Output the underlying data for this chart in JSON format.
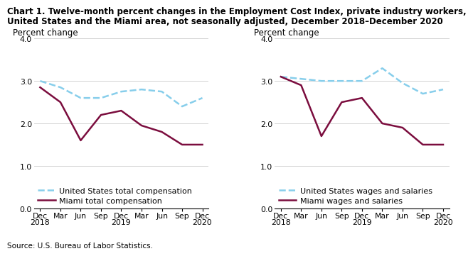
{
  "title_line1": "Chart 1. Twelve-month percent changes in the Employment Cost Index, private industry workers,",
  "title_line2": "United States and the Miami area, not seasonally adjusted, December 2018–December 2020",
  "source": "Source: U.S. Bureau of Labor Statistics.",
  "x_labels": [
    "Dec\n2018",
    "Mar",
    "Jun",
    "Sep",
    "Dec\n2019",
    "Mar",
    "Jun",
    "Sep",
    "Dec\n2020"
  ],
  "left_chart": {
    "ylabel": "Percent change",
    "us_total_comp": [
      3.0,
      2.85,
      2.6,
      2.6,
      2.75,
      2.8,
      2.75,
      2.4,
      2.6
    ],
    "miami_total_comp": [
      2.85,
      2.5,
      1.6,
      2.2,
      2.3,
      1.95,
      1.8,
      1.5,
      1.5
    ],
    "us_label": "United States total compensation",
    "miami_label": "Miami total compensation"
  },
  "right_chart": {
    "ylabel": "Percent change",
    "us_wages": [
      3.1,
      3.05,
      3.0,
      3.0,
      3.0,
      3.3,
      2.95,
      2.7,
      2.8
    ],
    "miami_wages": [
      3.1,
      2.9,
      1.7,
      2.5,
      2.6,
      2.0,
      1.9,
      1.5,
      1.5
    ],
    "us_label": "United States wages and salaries",
    "miami_label": "Miami wages and salaries"
  },
  "ylim": [
    0.0,
    4.0
  ],
  "yticks": [
    0.0,
    1.0,
    2.0,
    3.0,
    4.0
  ],
  "us_color": "#87CEEB",
  "miami_color": "#7B0D3E",
  "us_linestyle": "--",
  "miami_linestyle": "-",
  "linewidth": 1.8,
  "title_fontsize": 8.5,
  "axis_label_fontsize": 8.5,
  "tick_fontsize": 7.8,
  "legend_fontsize": 8.0,
  "source_fontsize": 7.5
}
